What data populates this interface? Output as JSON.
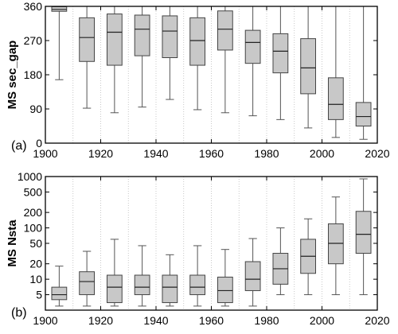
{
  "chart_data": [
    {
      "type": "box",
      "panel_label": "(a)",
      "ylabel": "MS sec_gap",
      "scale": "linear",
      "xlim": [
        1900,
        2020
      ],
      "ylim": [
        0,
        360
      ],
      "xticks": [
        "1900",
        "1920",
        "1940",
        "1960",
        "1980",
        "2000",
        "2020"
      ],
      "xtick_values": [
        1900,
        1920,
        1940,
        1960,
        1980,
        2000,
        2020
      ],
      "yticks": [
        "0",
        "90",
        "180",
        "270",
        "360"
      ],
      "ytick_values": [
        0,
        90,
        180,
        270,
        360
      ],
      "grid": "vertical dotted every 10 years",
      "box_color": "#c8c8c8",
      "boxes": [
        {
          "x": 1905,
          "whislo": 167,
          "q1": 347,
          "med": 352,
          "q3": 359,
          "whishi": 360
        },
        {
          "x": 1915,
          "whislo": 92,
          "q1": 215,
          "med": 278,
          "q3": 330,
          "whishi": 360
        },
        {
          "x": 1925,
          "whislo": 80,
          "q1": 205,
          "med": 292,
          "q3": 340,
          "whishi": 360
        },
        {
          "x": 1935,
          "whislo": 95,
          "q1": 230,
          "med": 300,
          "q3": 337,
          "whishi": 360
        },
        {
          "x": 1945,
          "whislo": 115,
          "q1": 225,
          "med": 295,
          "q3": 335,
          "whishi": 360
        },
        {
          "x": 1955,
          "whislo": 88,
          "q1": 205,
          "med": 270,
          "q3": 330,
          "whishi": 360
        },
        {
          "x": 1965,
          "whislo": 80,
          "q1": 245,
          "med": 300,
          "q3": 348,
          "whishi": 360
        },
        {
          "x": 1975,
          "whislo": 72,
          "q1": 210,
          "med": 265,
          "q3": 297,
          "whishi": 360
        },
        {
          "x": 1985,
          "whislo": 62,
          "q1": 185,
          "med": 242,
          "q3": 288,
          "whishi": 360
        },
        {
          "x": 1995,
          "whislo": 40,
          "q1": 130,
          "med": 198,
          "q3": 275,
          "whishi": 360
        },
        {
          "x": 2005,
          "whislo": 15,
          "q1": 62,
          "med": 102,
          "q3": 172,
          "whishi": 360
        },
        {
          "x": 2015,
          "whislo": 10,
          "q1": 45,
          "med": 70,
          "q3": 107,
          "whishi": 360
        }
      ]
    },
    {
      "type": "box",
      "panel_label": "(b)",
      "ylabel": "MS Nsta",
      "scale": "log",
      "xlim": [
        1900,
        2020
      ],
      "ylim": [
        2.5,
        1000
      ],
      "xticks": [
        "1900",
        "1920",
        "1940",
        "1960",
        "1980",
        "2000",
        "2020"
      ],
      "xtick_values": [
        1900,
        1920,
        1940,
        1960,
        1980,
        2000,
        2020
      ],
      "yticks": [
        "5",
        "10",
        "20",
        "50",
        "100",
        "200",
        "500",
        "1000"
      ],
      "ytick_values": [
        5,
        10,
        20,
        50,
        100,
        200,
        500,
        1000
      ],
      "grid": "vertical dotted every 10 years",
      "box_color": "#c8c8c8",
      "boxes": [
        {
          "x": 1905,
          "whislo": 3,
          "q1": 4,
          "med": 5,
          "q3": 7,
          "whishi": 18
        },
        {
          "x": 1915,
          "whislo": 3,
          "q1": 5,
          "med": 9,
          "q3": 14,
          "whishi": 35
        },
        {
          "x": 1925,
          "whislo": 3,
          "q1": 3.5,
          "med": 7,
          "q3": 12,
          "whishi": 60
        },
        {
          "x": 1935,
          "whislo": 3,
          "q1": 5,
          "med": 7,
          "q3": 12,
          "whishi": 45
        },
        {
          "x": 1945,
          "whislo": 3,
          "q1": 3.5,
          "med": 7,
          "q3": 12,
          "whishi": 30
        },
        {
          "x": 1955,
          "whislo": 3,
          "q1": 5,
          "med": 7,
          "q3": 12,
          "whishi": 45
        },
        {
          "x": 1965,
          "whislo": 3,
          "q1": 3.5,
          "med": 6,
          "q3": 11,
          "whishi": 38
        },
        {
          "x": 1975,
          "whislo": 3,
          "q1": 6,
          "med": 10,
          "q3": 22,
          "whishi": 62
        },
        {
          "x": 1985,
          "whislo": 5,
          "q1": 8,
          "med": 16,
          "q3": 32,
          "whishi": 100
        },
        {
          "x": 1995,
          "whislo": 5,
          "q1": 13,
          "med": 28,
          "q3": 60,
          "whishi": 150
        },
        {
          "x": 2005,
          "whislo": 5,
          "q1": 20,
          "med": 50,
          "q3": 120,
          "whishi": 400
        },
        {
          "x": 2015,
          "whislo": 5,
          "q1": 32,
          "med": 75,
          "q3": 210,
          "whishi": 900
        }
      ]
    }
  ]
}
